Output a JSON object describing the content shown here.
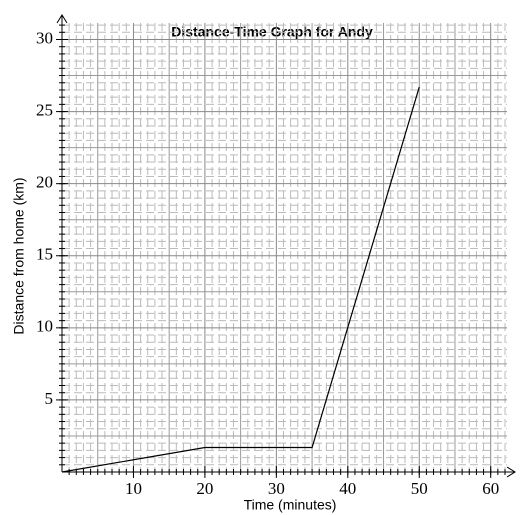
{
  "chart_data": {
    "type": "line",
    "title": "Distance-Time Graph for Andy",
    "x_label": "Time (minutes)",
    "y_label": "Distance from home (km)",
    "series": [
      {
        "name": "Andy",
        "color": "#000000",
        "x": [
          0,
          20,
          35,
          50
        ],
        "values": [
          0,
          1.7,
          1.7,
          26.7
        ]
      }
    ],
    "xlim": [
      0,
      63.4
    ],
    "ylim": [
      0,
      31.7
    ],
    "xticks": [
      10,
      20,
      30,
      40,
      50,
      60
    ],
    "yticks": [
      5,
      10,
      15,
      20,
      25,
      30
    ],
    "grid": true
  }
}
